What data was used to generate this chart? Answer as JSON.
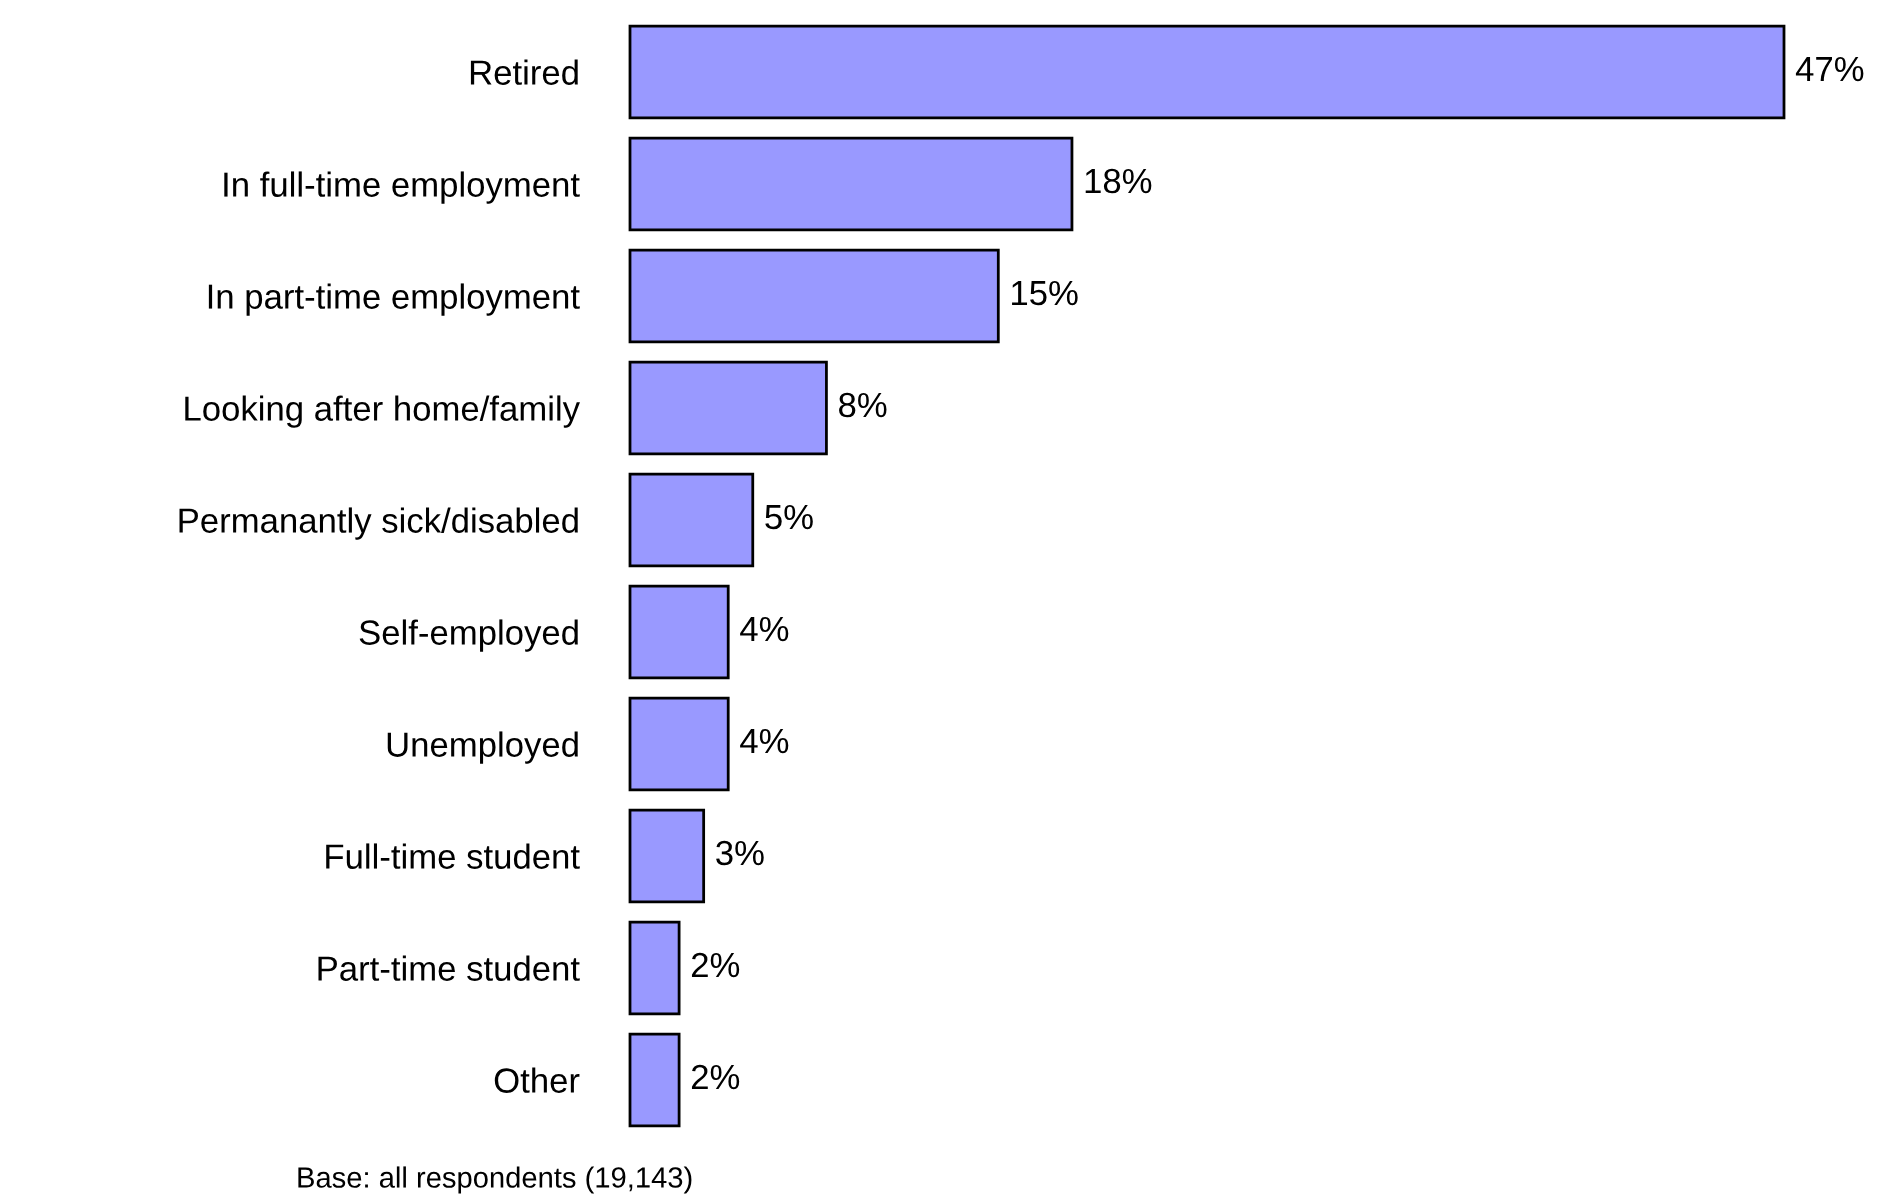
{
  "chart_data": {
    "type": "bar",
    "orientation": "horizontal",
    "categories": [
      "Retired",
      "In full-time employment",
      "In part-time employment",
      "Looking after home/family",
      "Permanantly sick/disabled",
      "Self-employed",
      "Unemployed",
      "Full-time student",
      "Part-time student",
      "Other"
    ],
    "values": [
      47,
      18,
      15,
      8,
      5,
      4,
      4,
      3,
      2,
      2
    ],
    "value_labels": [
      "47%",
      "18%",
      "15%",
      "8%",
      "5%",
      "4%",
      "4%",
      "3%",
      "2%",
      "2%"
    ],
    "color": "#9999ff",
    "xlim": [
      0,
      47
    ],
    "grid": false,
    "legend": false,
    "annotations": [
      "Base: all respondents (19,143)"
    ]
  }
}
